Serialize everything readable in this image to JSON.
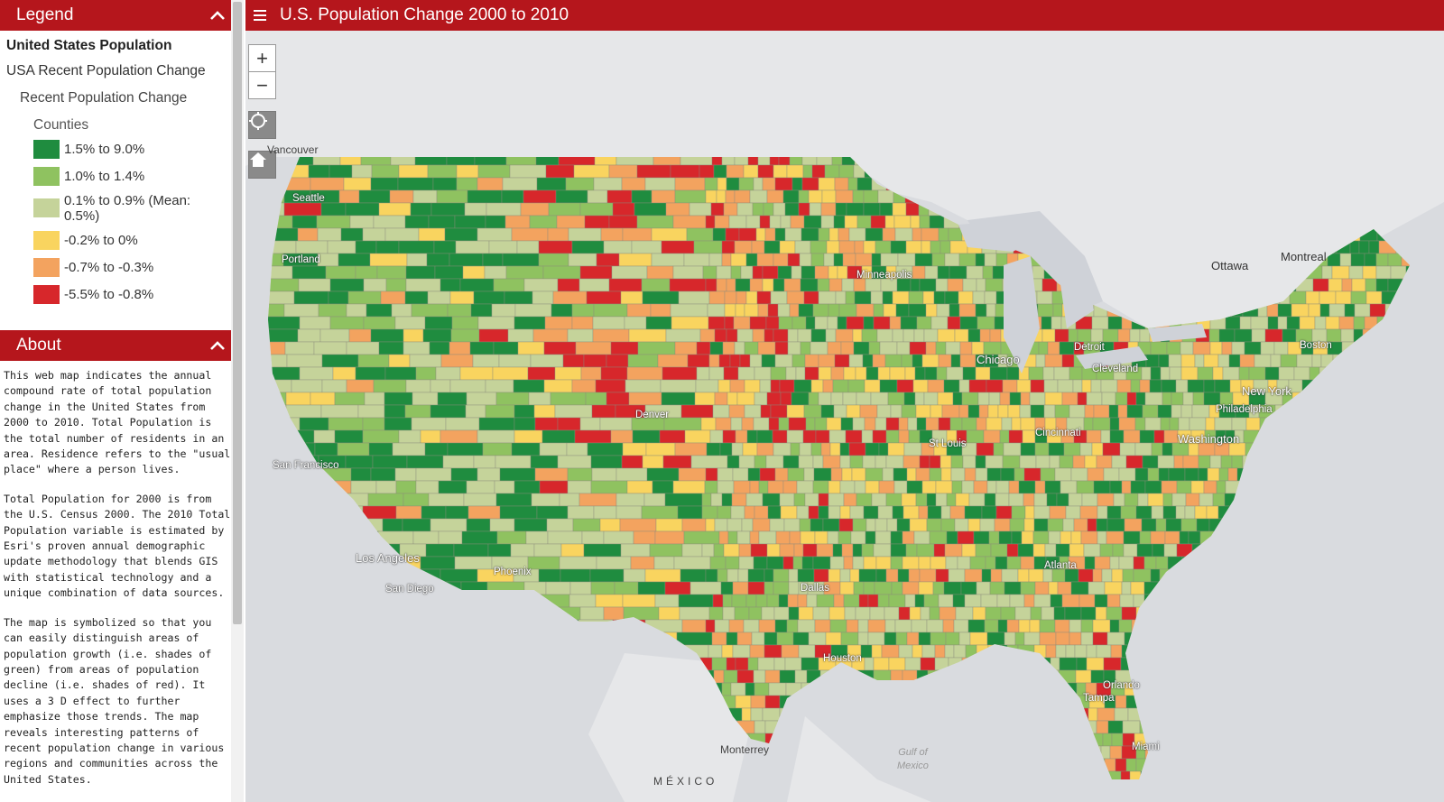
{
  "app": {
    "title": "U.S. Population Change 2000 to 2010"
  },
  "legend": {
    "header": "Legend",
    "title": "United States Population",
    "layer": "USA Recent Population Change",
    "sublayer": "Recent Population Change",
    "group": "Counties",
    "classes": [
      {
        "label": "1.5% to 9.0%",
        "color": "#1f8c3f"
      },
      {
        "label": "1.0% to 1.4%",
        "color": "#8fc260"
      },
      {
        "label": "0.1% to 0.9% (Mean: 0.5%)",
        "color": "#c5d39a"
      },
      {
        "label": "-0.2% to 0%",
        "color": "#f9d45f"
      },
      {
        "label": "-0.7% to -0.3%",
        "color": "#f3a35f"
      },
      {
        "label": "-5.5% to -0.8%",
        "color": "#d7272b"
      }
    ]
  },
  "about": {
    "header": "About",
    "p1": "This web map indicates the annual compound rate of total population change in the United States from 2000 to 2010. Total Population is the total number of residents in an area. Residence refers to the \"usual place\" where a person lives.",
    "p2": "Total Population for 2000 is from the U.S. Census 2000. The 2010 Total Population variable is estimated by Esri's proven annual demographic update methodology that blends GIS with statistical technology and a unique combination of data sources.",
    "p3": "The map is symbolized so that you can easily distinguish areas of population growth (i.e. shades of green) from areas of population decline (i.e. shades of red). It uses a 3 D effect to further emphasize those trends.  The map reveals interesting patterns of recent population change in various regions and communities across the United States."
  },
  "controls": {
    "zoom_in": "+",
    "zoom_out": "−"
  },
  "map_labels": {
    "vancouver": "Vancouver",
    "seattle": "Seattle",
    "portland": "Portland",
    "san_francisco": "San Francisco",
    "los_angeles": "Los Angeles",
    "san_diego": "San Diego",
    "phoenix": "Phoenix",
    "denver": "Denver",
    "dallas": "Dallas",
    "houston": "Houston",
    "minneapolis": "Minneapolis",
    "chicago": "Chicago",
    "st_louis": "St Louis",
    "detroit": "Detroit",
    "cleveland": "Cleveland",
    "cincinnati": "Cincinnati",
    "atlanta": "Atlanta",
    "washington": "Washington",
    "philadelphia": "Philadelphia",
    "new_york": "New York",
    "boston": "Boston",
    "orlando": "Orlando",
    "tampa": "Tampa",
    "miami": "Miami",
    "ottawa": "Ottawa",
    "montreal": "Montreal",
    "monterrey": "Monterrey",
    "gulf": "Gulf of",
    "gulf2": "Mexico",
    "mexico": "MÉXICO"
  }
}
